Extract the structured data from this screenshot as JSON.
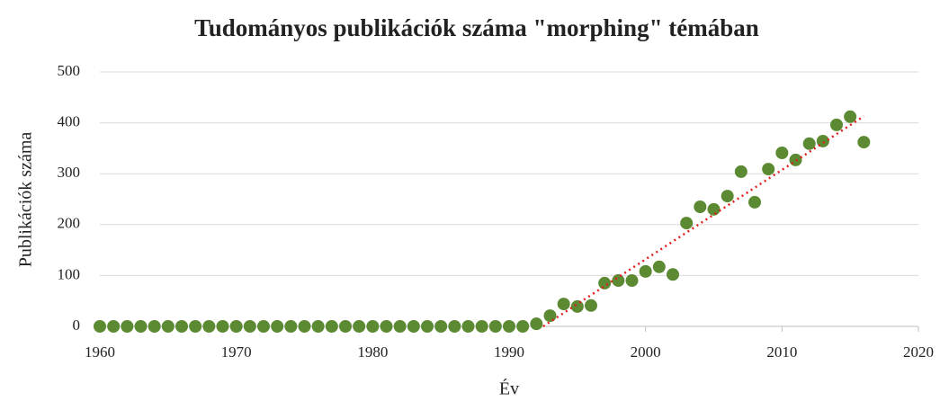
{
  "chart_data": {
    "type": "scatter",
    "title": "Tudományos publikációk száma \"morphing\" témában",
    "xlabel": "Év",
    "ylabel": "Publikációk száma",
    "series": [
      {
        "color": "#5b8a32",
        "x": [
          1960,
          1961,
          1962,
          1963,
          1964,
          1965,
          1966,
          1967,
          1968,
          1969,
          1970,
          1971,
          1972,
          1973,
          1974,
          1975,
          1976,
          1977,
          1978,
          1979,
          1980,
          1981,
          1982,
          1983,
          1984,
          1985,
          1986,
          1987,
          1988,
          1989,
          1990,
          1991,
          1992,
          1993,
          1994,
          1995,
          1996,
          1997,
          1998,
          1999,
          2000,
          2001,
          2002,
          2003,
          2004,
          2005,
          2006,
          2007,
          2008,
          2009,
          2010,
          2011,
          2012,
          2013,
          2014,
          2015,
          2016
        ],
        "values": [
          0,
          0,
          0,
          0,
          0,
          0,
          0,
          0,
          0,
          0,
          0,
          0,
          0,
          0,
          0,
          0,
          0,
          0,
          0,
          0,
          0,
          0,
          0,
          0,
          0,
          0,
          0,
          0,
          0,
          0,
          0,
          0,
          5,
          21,
          44,
          39,
          41,
          85,
          90,
          90,
          108,
          117,
          102,
          203,
          235,
          230,
          256,
          304,
          244,
          309,
          341,
          327,
          359,
          364,
          396,
          412,
          362
        ]
      }
    ],
    "trendline": {
      "color": "#e02020",
      "x": [
        1992.5,
        2016
      ],
      "values": [
        0,
        413
      ]
    },
    "xlim": [
      1960,
      2020
    ],
    "xticks": [
      1960,
      1970,
      1980,
      1990,
      2000,
      2010,
      2020
    ],
    "ylim": [
      0,
      500
    ],
    "yticks": [
      0,
      100,
      200,
      300,
      400,
      500
    ],
    "grid": true
  }
}
